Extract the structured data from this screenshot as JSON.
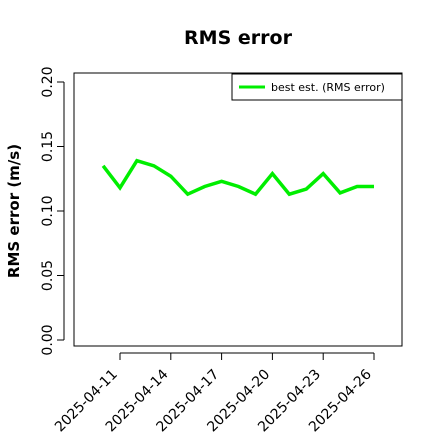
{
  "chart_data": {
    "type": "line",
    "title": "RMS error",
    "xlabel": "",
    "ylabel": "RMS error (m/s)",
    "x": [
      "2025-04-11",
      "2025-04-12",
      "2025-04-13",
      "2025-04-14",
      "2025-04-15",
      "2025-04-16",
      "2025-04-17",
      "2025-04-18",
      "2025-04-19",
      "2025-04-20",
      "2025-04-21",
      "2025-04-22",
      "2025-04-23",
      "2025-04-24",
      "2025-04-25",
      "2025-04-26"
    ],
    "x_tick_labels": [
      "2025-04-11",
      "2025-04-14",
      "2025-04-17",
      "2025-04-20",
      "2025-04-23",
      "2025-04-26"
    ],
    "ylim": [
      0,
      0.21
    ],
    "y_ticks": [
      "0.00",
      "0.05",
      "0.10",
      "0.15",
      "0.20"
    ],
    "series": [
      {
        "name": "best est. (RMS error)",
        "color": "#00ee00",
        "x": [
          "2025-04-10",
          "2025-04-11",
          "2025-04-12",
          "2025-04-13",
          "2025-04-14",
          "2025-04-15",
          "2025-04-16",
          "2025-04-17",
          "2025-04-18",
          "2025-04-19",
          "2025-04-20",
          "2025-04-21",
          "2025-04-22",
          "2025-04-23",
          "2025-04-24",
          "2025-04-25",
          "2025-04-26"
        ],
        "values": [
          0.135,
          0.118,
          0.139,
          0.135,
          0.127,
          0.113,
          0.119,
          0.123,
          0.119,
          0.113,
          0.129,
          0.113,
          0.117,
          0.129,
          0.114,
          0.119,
          0.119
        ]
      }
    ],
    "legend_position": "top-right",
    "grid": false,
    "highlight_tick": {
      "label": "2025-04-17",
      "color": "#228b22"
    }
  }
}
